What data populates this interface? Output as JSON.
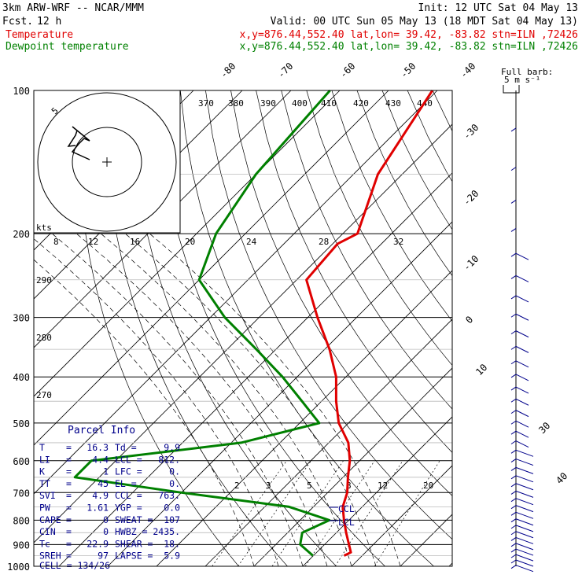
{
  "header": {
    "model": "3km ARW-WRF -- NCAR/MMM",
    "init": "Init: 12 UTC Sat 04 May 13",
    "fcst_label": "Fcst.",
    "fcst_value": "12 h",
    "valid": "Valid: 00 UTC Sun 05 May 13 (18 MDT Sat 04 May 13)",
    "temp_label": "Temperature",
    "dew_label": "Dewpoint temperature",
    "loc_info": "x,y=876.44,552.40   lat,lon= 39.42, -83.82  stn=ILN ,72426"
  },
  "colors": {
    "temperature": "#e00000",
    "dewpoint": "#008000",
    "barbs": "#00008b",
    "parcel_text": "#00008b"
  },
  "wind_legend": {
    "title": "Full barb:",
    "units": "5 m s⁻¹"
  },
  "hodograph": {
    "ring_label": "5",
    "units": "kts"
  },
  "chart_data": {
    "type": "line",
    "title": "",
    "pressure_ticks": [
      100,
      200,
      300,
      400,
      500,
      600,
      700,
      800,
      900,
      1000
    ],
    "isotherm_labels_top": [
      -80,
      -70,
      -60,
      -50,
      -40
    ],
    "isotherm_labels_right": [
      -30,
      -20,
      -10,
      0,
      10,
      30,
      40
    ],
    "theta_labels_top": [
      370,
      380,
      390,
      400,
      410,
      420,
      430,
      440
    ],
    "theta_labels_left": [
      290,
      280,
      270
    ],
    "mixing_ratio_labels_mid": [
      8,
      12,
      16,
      20,
      24,
      28,
      32
    ],
    "mixing_ratio_labels_low": [
      2,
      3,
      5,
      8,
      12,
      20
    ],
    "series": [
      {
        "name": "Temperature",
        "p": [
          100,
          150,
          200,
          210,
          250,
          300,
          350,
          400,
          450,
          500,
          550,
          600,
          650,
          700,
          750,
          800,
          850,
          900,
          935,
          950
        ],
        "temp": [
          -61,
          -55,
          -47,
          -49,
          -48,
          -38,
          -29,
          -22,
          -17,
          -12,
          -6,
          -2,
          1,
          4,
          6,
          9,
          12,
          15,
          17,
          16.3
        ]
      },
      {
        "name": "Dewpoint temperature",
        "p": [
          100,
          150,
          200,
          250,
          300,
          350,
          400,
          450,
          500,
          550,
          600,
          650,
          700,
          750,
          800,
          850,
          900,
          950
        ],
        "dewpoint": [
          -82,
          -80,
          -76,
          -70,
          -57,
          -44,
          -33,
          -24,
          -16,
          -28,
          -55,
          -55,
          -30,
          -5,
          6,
          3,
          5,
          9.9
        ]
      }
    ],
    "annotations": [
      "LCL",
      "CCL"
    ]
  },
  "parcel_info": {
    "title": "Parcel Info",
    "rows": [
      {
        "a": "T",
        "av": "16.3",
        "b": "Td",
        "bv": "9.9"
      },
      {
        "a": "LI",
        "av": "4.4",
        "b": "LCL",
        "bv": "812."
      },
      {
        "a": "K",
        "av": "1",
        "b": "LFC",
        "bv": "0."
      },
      {
        "a": "TT",
        "av": "45",
        "b": "EL",
        "bv": "0."
      },
      {
        "a": "SVI",
        "av": "4.9",
        "b": "CCL",
        "bv": "763."
      },
      {
        "a": "PW",
        "av": "1.61",
        "b": "YGP",
        "bv": "0.0"
      },
      {
        "a": "CAPE",
        "av": "0",
        "b": "SWEAT",
        "bv": "107"
      },
      {
        "a": "CIN",
        "av": "0",
        "b": "HWBZ",
        "bv": "2435."
      },
      {
        "a": "Tc",
        "av": "22.9",
        "b": "SHEAR",
        "bv": "18."
      },
      {
        "a": "SREH",
        "av": "97",
        "b": "LAPSE",
        "bv": "5.9"
      }
    ],
    "cell": "CELL = 134/26"
  }
}
